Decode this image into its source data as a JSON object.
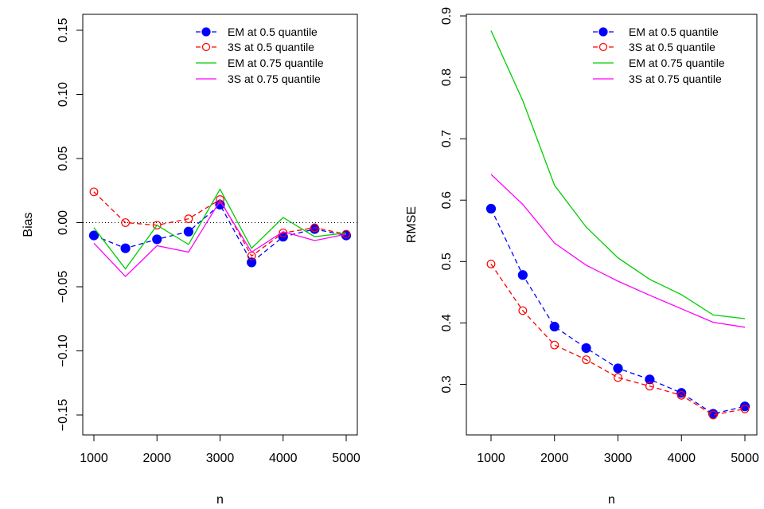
{
  "chart_data": [
    {
      "type": "line",
      "xlabel": "n",
      "ylabel": "Bias",
      "x": [
        1000,
        1500,
        2000,
        2500,
        3000,
        3500,
        4000,
        4500,
        5000
      ],
      "xlim": [
        1000,
        5000
      ],
      "ylim": [
        -0.15,
        0.15
      ],
      "xticks": [
        "1000",
        "2000",
        "3000",
        "4000",
        "5000"
      ],
      "yticks": [
        "-0.15",
        "-0.10",
        "-0.05",
        "0.00",
        "0.05",
        "0.10",
        "0.15"
      ],
      "reference_line": 0,
      "legend_position": "top-right",
      "series": [
        {
          "name": "EM at 0.5 quantile",
          "color": "#0000ff",
          "line": "dashed",
          "marker": "filled-circle",
          "values": [
            -0.01,
            -0.02,
            -0.013,
            -0.007,
            0.014,
            -0.031,
            -0.011,
            -0.005,
            -0.01
          ]
        },
        {
          "name": "3S at 0.5 quantile",
          "color": "#ff0000",
          "line": "dashed",
          "marker": "open-circle",
          "values": [
            0.024,
            0.0,
            -0.002,
            0.003,
            0.018,
            -0.026,
            -0.008,
            -0.004,
            -0.009
          ]
        },
        {
          "name": "EM at 0.75 quantile",
          "color": "#00cc00",
          "line": "solid",
          "marker": "none",
          "values": [
            -0.004,
            -0.036,
            -0.002,
            -0.017,
            0.026,
            -0.02,
            0.004,
            -0.011,
            -0.008
          ]
        },
        {
          "name": "3S at 0.75 quantile",
          "color": "#ff00ff",
          "line": "solid",
          "marker": "none",
          "values": [
            -0.016,
            -0.042,
            -0.018,
            -0.023,
            0.017,
            -0.023,
            -0.007,
            -0.014,
            -0.009
          ]
        }
      ]
    },
    {
      "type": "line",
      "xlabel": "n",
      "ylabel": "RMSE",
      "x": [
        1000,
        1500,
        2000,
        2500,
        3000,
        3500,
        4000,
        4500,
        5000
      ],
      "xlim": [
        1000,
        5000
      ],
      "ylim": [
        0.25,
        0.9
      ],
      "xticks": [
        "1000",
        "2000",
        "3000",
        "4000",
        "5000"
      ],
      "yticks": [
        "0.3",
        "0.4",
        "0.5",
        "0.6",
        "0.7",
        "0.8",
        "0.9"
      ],
      "legend_position": "top-right",
      "series": [
        {
          "name": "EM at 0.5 quantile",
          "color": "#0000ff",
          "line": "dashed",
          "marker": "filled-circle",
          "values": [
            0.586,
            0.478,
            0.394,
            0.359,
            0.326,
            0.308,
            0.286,
            0.252,
            0.264
          ]
        },
        {
          "name": "3S at 0.5 quantile",
          "color": "#ff0000",
          "line": "dashed",
          "marker": "open-circle",
          "values": [
            0.496,
            0.42,
            0.364,
            0.34,
            0.311,
            0.297,
            0.282,
            0.25,
            0.26
          ]
        },
        {
          "name": "EM at 0.75 quantile",
          "color": "#00cc00",
          "line": "solid",
          "marker": "none",
          "values": [
            0.876,
            0.762,
            0.624,
            0.556,
            0.506,
            0.471,
            0.446,
            0.413,
            0.407
          ]
        },
        {
          "name": "3S at 0.75 quantile",
          "color": "#ff00ff",
          "line": "solid",
          "marker": "none",
          "values": [
            0.642,
            0.593,
            0.53,
            0.494,
            0.468,
            0.445,
            0.423,
            0.401,
            0.393
          ]
        }
      ]
    }
  ]
}
